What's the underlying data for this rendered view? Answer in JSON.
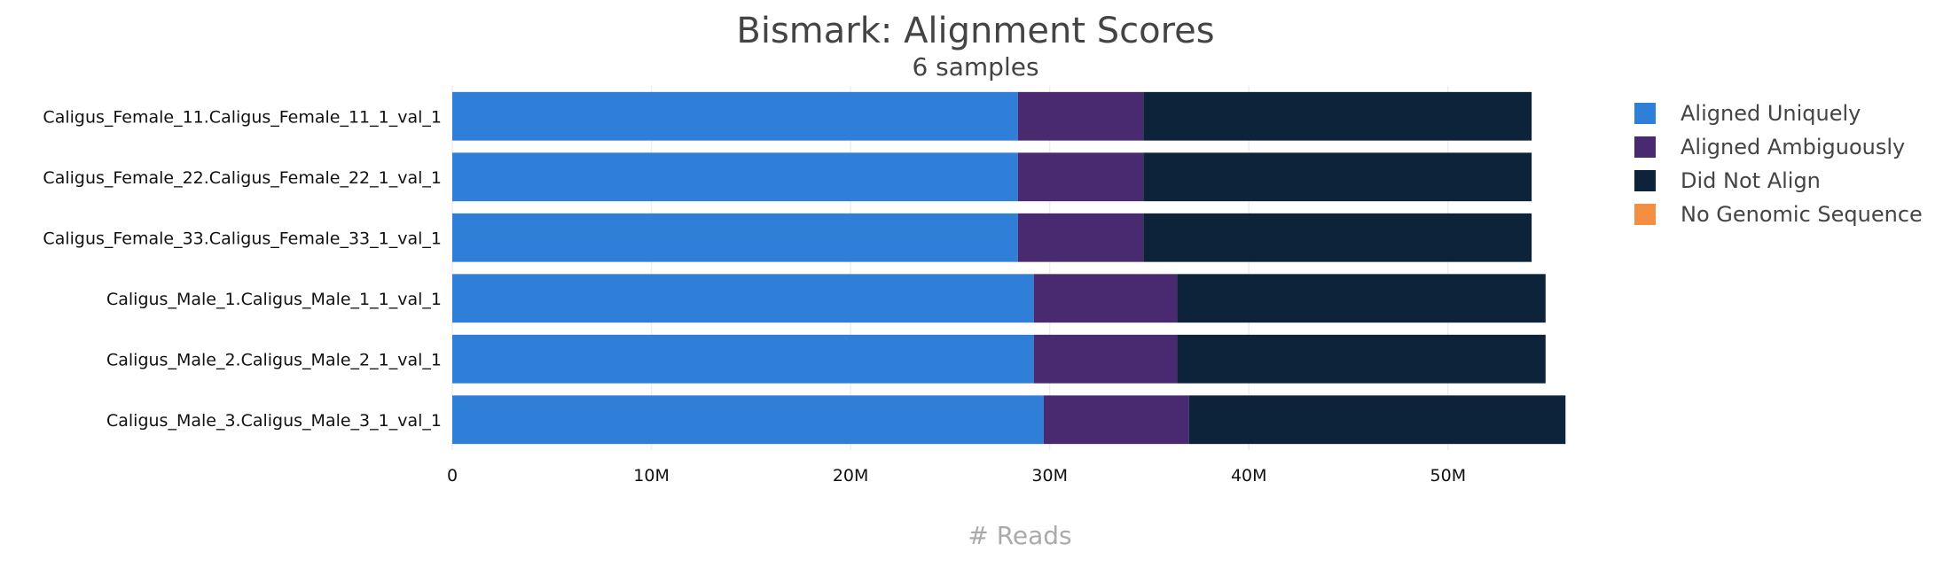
{
  "chart_data": {
    "type": "bar",
    "orientation": "horizontal",
    "stacked": true,
    "title": "Bismark: Alignment Scores",
    "subtitle": "6 samples",
    "xlabel": "# Reads",
    "xlim": [
      0,
      57000000
    ],
    "xticks": [
      {
        "value": 0,
        "label": "0"
      },
      {
        "value": 10000000,
        "label": "10M"
      },
      {
        "value": 20000000,
        "label": "20M"
      },
      {
        "value": 30000000,
        "label": "30M"
      },
      {
        "value": 40000000,
        "label": "40M"
      },
      {
        "value": 50000000,
        "label": "50M"
      }
    ],
    "categories": [
      "Caligus_Female_11.Caligus_Female_11_1_val_1",
      "Caligus_Female_22.Caligus_Female_22_1_val_1",
      "Caligus_Female_33.Caligus_Female_33_1_val_1",
      "Caligus_Male_1.Caligus_Male_1_1_val_1",
      "Caligus_Male_2.Caligus_Male_2_1_val_1",
      "Caligus_Male_3.Caligus_Male_3_1_val_1"
    ],
    "series": [
      {
        "name": "Aligned Uniquely",
        "color": "#2f7ed8",
        "values": [
          28400000,
          28400000,
          28400000,
          29200000,
          29200000,
          29700000
        ]
      },
      {
        "name": "Aligned Ambiguously",
        "color": "#492970",
        "values": [
          6300000,
          6300000,
          6300000,
          7200000,
          7200000,
          7300000
        ]
      },
      {
        "name": "Did Not Align",
        "color": "#0d233a",
        "values": [
          19500000,
          19500000,
          19500000,
          18500000,
          18500000,
          18900000
        ]
      },
      {
        "name": "No Genomic Sequence",
        "color": "#f28f43",
        "values": [
          0,
          0,
          0,
          0,
          0,
          0
        ]
      }
    ],
    "legend": "right",
    "grid": true
  }
}
